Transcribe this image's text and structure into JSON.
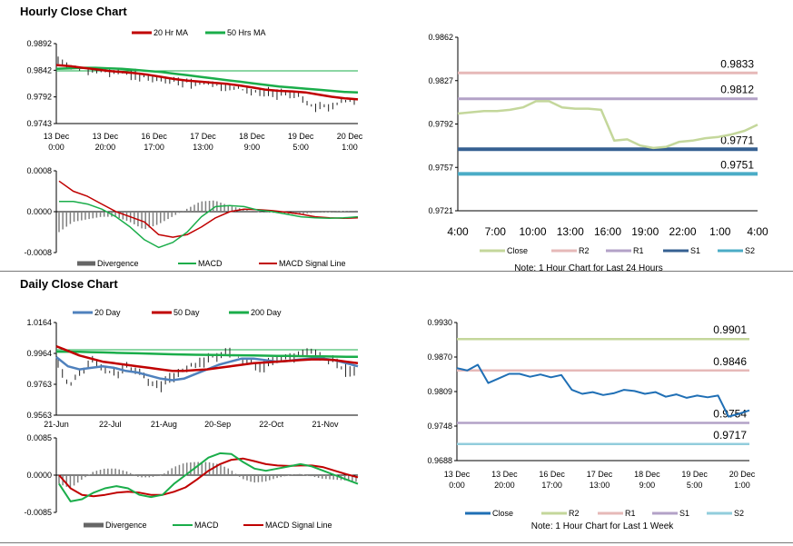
{
  "hourly_title": "Hourly Close Chart",
  "daily_title": "Daily Close Chart",
  "colors": {
    "red": "#c00000",
    "green": "#1aad4a",
    "blue": "#4f81bd",
    "black": "#000000",
    "pivot_close": "#c4d79b",
    "pivot_r2": "#e6b9b8",
    "pivot_r1": "#b3a2c7",
    "pivot_s1": "#366092",
    "pivot_s2": "#4bacc6",
    "weekly_close": "#1f6fb5",
    "weekly_r2": "#c4d79b",
    "weekly_r1": "#e6b9b8",
    "weekly_s1": "#b3a2c7",
    "weekly_s2": "#92cddc"
  },
  "chart_data": [
    {
      "id": "hourly-price",
      "type": "line",
      "title": "Hourly Close Chart",
      "yticks": [
        "0.9892",
        "0.9842",
        "0.9792",
        "0.9743"
      ],
      "ylim": [
        0.9743,
        0.9892
      ],
      "xticks": [
        [
          "13 Dec",
          "0:00"
        ],
        [
          "13 Dec",
          "20:00"
        ],
        [
          "16 Dec",
          "17:00"
        ],
        [
          "17 Dec",
          "13:00"
        ],
        [
          "18 Dec",
          "9:00"
        ],
        [
          "19 Dec",
          "5:00"
        ],
        [
          "20 Dec",
          "1:00"
        ]
      ],
      "legend": [
        "20 Hr MA",
        "50 Hrs MA"
      ],
      "series": [
        {
          "name": "Close",
          "values": [
            0.9855,
            0.9851,
            0.9846,
            0.9842,
            0.984,
            0.9838,
            0.9834,
            0.9829,
            0.9824,
            0.9822,
            0.982,
            0.9818,
            0.9815,
            0.9812,
            0.9808,
            0.9803,
            0.9799,
            0.98,
            0.9798,
            0.979,
            0.9772,
            0.9776,
            0.9782,
            0.9788
          ]
        },
        {
          "name": "20 Hr MA",
          "values": [
            0.9852,
            0.985,
            0.9847,
            0.9844,
            0.9841,
            0.9839,
            0.9837,
            0.9834,
            0.983,
            0.9826,
            0.9823,
            0.9821,
            0.9819,
            0.9817,
            0.9814,
            0.981,
            0.9806,
            0.9804,
            0.9803,
            0.9801,
            0.9797,
            0.9793,
            0.979,
            0.9788
          ]
        },
        {
          "name": "50 Hrs MA",
          "values": [
            0.9845,
            0.9846,
            0.9847,
            0.9847,
            0.9846,
            0.9845,
            0.9843,
            0.9841,
            0.9839,
            0.9836,
            0.9833,
            0.983,
            0.9827,
            0.9824,
            0.9821,
            0.9818,
            0.9815,
            0.9812,
            0.981,
            0.9808,
            0.9806,
            0.9804,
            0.9802,
            0.9801
          ]
        }
      ]
    },
    {
      "id": "hourly-macd",
      "type": "line",
      "yticks": [
        "0.0008",
        "0.0000",
        "-0.0008"
      ],
      "ylim": [
        -0.0008,
        0.0008
      ],
      "legend": [
        "Divergence",
        "MACD",
        "MACD Signal Line"
      ],
      "series": [
        {
          "name": "MACD",
          "values": [
            0.0002,
            0.0002,
            0.00015,
            5e-05,
            -0.0001,
            -0.0003,
            -0.00055,
            -0.0007,
            -0.0006,
            -0.0004,
            -0.0001,
            0.0001,
            0.00012,
            0.0001,
            3e-05,
            0.0,
            -5e-05,
            -0.0001,
            -0.00012,
            -0.00013,
            -0.00012,
            -0.0001
          ]
        },
        {
          "name": "MACD Signal Line",
          "values": [
            0.0006,
            0.0004,
            0.0003,
            0.00015,
            0.0,
            -0.0001,
            -0.0002,
            -0.00045,
            -0.0005,
            -0.00045,
            -0.0003,
            -0.00012,
            0.0,
            5e-05,
            4e-05,
            2e-05,
            -1e-05,
            -5e-05,
            -0.0001,
            -0.00012,
            -0.00013,
            -0.00012
          ]
        },
        {
          "name": "Divergence",
          "values": [
            -0.0004,
            -0.0002,
            -0.00015,
            -0.0001,
            -0.0001,
            -0.0002,
            -0.00035,
            -0.00025,
            -0.0001,
            5e-05,
            0.0002,
            0.00022,
            0.00012,
            5e-05,
            -1e-05,
            -2e-05,
            -4e-05,
            -5e-05,
            -2e-05,
            -1e-05,
            1e-05,
            2e-05
          ]
        }
      ]
    },
    {
      "id": "pivot-24h",
      "type": "line",
      "yticks": [
        "0.9862",
        "0.9827",
        "0.9792",
        "0.9757",
        "0.9721"
      ],
      "ylim": [
        0.9721,
        0.9862
      ],
      "xticks": [
        "4:00",
        "7:00",
        "10:00",
        "13:00",
        "16:00",
        "19:00",
        "22:00",
        "1:00",
        "4:00"
      ],
      "levels": [
        {
          "name": "R2",
          "value": 0.9833,
          "label": "0.9833"
        },
        {
          "name": "R1",
          "value": 0.9812,
          "label": "0.9812"
        },
        {
          "name": "S1",
          "value": 0.9771,
          "label": "0.9771"
        },
        {
          "name": "S2",
          "value": 0.9751,
          "label": "0.9751"
        }
      ],
      "close": [
        0.98,
        0.9801,
        0.9802,
        0.9802,
        0.9803,
        0.9805,
        0.981,
        0.981,
        0.9805,
        0.9804,
        0.9804,
        0.9803,
        0.9778,
        0.9779,
        0.9774,
        0.9772,
        0.9773,
        0.9777,
        0.9778,
        0.978,
        0.9781,
        0.9783,
        0.9786,
        0.9791
      ],
      "legend": [
        "Close",
        "R2",
        "R1",
        "S1",
        "S2"
      ],
      "note": "Note: 1 Hour Chart for Last 24 Hours"
    },
    {
      "id": "daily-price",
      "type": "line",
      "title": "Daily Close Chart",
      "yticks": [
        "1.0164",
        "0.9964",
        "0.9763",
        "0.9563"
      ],
      "ylim": [
        0.9563,
        1.0164
      ],
      "xticks": [
        "21-Jun",
        "22-Jul",
        "21-Aug",
        "20-Sep",
        "22-Oct",
        "21-Nov"
      ],
      "legend": [
        "20 Day",
        "50 Day",
        "200 Day"
      ],
      "series": [
        {
          "name": "Close",
          "values": [
            0.988,
            0.976,
            0.984,
            0.992,
            0.986,
            0.982,
            0.988,
            0.984,
            0.978,
            0.975,
            0.98,
            0.986,
            0.989,
            0.992,
            0.995,
            0.997,
            0.993,
            0.99,
            0.988,
            0.992,
            0.994,
            0.996,
            0.997,
            0.994,
            0.992,
            0.986,
            0.983
          ]
        },
        {
          "name": "20 Day",
          "values": [
            0.994,
            0.988,
            0.986,
            0.987,
            0.988,
            0.987,
            0.985,
            0.984,
            0.982,
            0.98,
            0.979,
            0.98,
            0.983,
            0.986,
            0.989,
            0.991,
            0.993,
            0.993,
            0.992,
            0.991,
            0.9915,
            0.9925,
            0.993,
            0.993,
            0.992,
            0.99,
            0.988
          ]
        },
        {
          "name": "50 Day",
          "values": [
            1.001,
            0.998,
            0.995,
            0.993,
            0.991,
            0.99,
            0.989,
            0.988,
            0.987,
            0.986,
            0.985,
            0.985,
            0.9855,
            0.986,
            0.987,
            0.988,
            0.989,
            0.99,
            0.9905,
            0.991,
            0.9915,
            0.992,
            0.9925,
            0.9925,
            0.992,
            0.991,
            0.99
          ]
        },
        {
          "name": "200 Day",
          "values": [
            0.9975,
            0.9975,
            0.9974,
            0.9972,
            0.997,
            0.9968,
            0.9966,
            0.9964,
            0.9962,
            0.996,
            0.9958,
            0.9956,
            0.9955,
            0.9954,
            0.9953,
            0.9952,
            0.9951,
            0.995,
            0.9949,
            0.9948,
            0.9947,
            0.9946,
            0.9945,
            0.9944,
            0.9943,
            0.9942,
            0.9941
          ]
        }
      ]
    },
    {
      "id": "daily-macd",
      "type": "line",
      "yticks": [
        "0.0085",
        "0.0000",
        "-0.0085"
      ],
      "ylim": [
        -0.0085,
        0.0085
      ],
      "legend": [
        "Divergence",
        "MACD",
        "MACD Signal Line"
      ],
      "series": [
        {
          "name": "MACD",
          "values": [
            -0.002,
            -0.006,
            -0.0055,
            -0.004,
            -0.003,
            -0.0025,
            -0.003,
            -0.0045,
            -0.005,
            -0.0045,
            -0.002,
            0.0,
            0.002,
            0.004,
            0.005,
            0.0048,
            0.003,
            0.0015,
            0.001,
            0.0015,
            0.002,
            0.0025,
            0.002,
            0.001,
            0.0,
            -0.001,
            -0.002
          ]
        },
        {
          "name": "MACD Signal Line",
          "values": [
            0.0,
            -0.003,
            -0.0045,
            -0.0048,
            -0.0045,
            -0.004,
            -0.0038,
            -0.004,
            -0.0045,
            -0.0045,
            -0.0038,
            -0.0028,
            -0.001,
            0.001,
            0.0025,
            0.0035,
            0.0038,
            0.0032,
            0.0025,
            0.0022,
            0.0021,
            0.0022,
            0.0022,
            0.0018,
            0.001,
            0.0002,
            -0.0005
          ]
        },
        {
          "name": "Divergence",
          "values": [
            -0.002,
            -0.003,
            -0.001,
            0.0008,
            0.0015,
            0.0015,
            0.0008,
            -0.0005,
            -0.0005,
            0.0,
            0.0018,
            0.0028,
            0.003,
            0.003,
            0.0025,
            0.0013,
            -0.0008,
            -0.0017,
            -0.0015,
            -0.0007,
            -0.0001,
            0.0003,
            -0.0002,
            -0.0008,
            -0.001,
            -0.0012,
            -0.0015
          ]
        }
      ]
    },
    {
      "id": "pivot-week",
      "type": "line",
      "yticks": [
        "0.9930",
        "0.9870",
        "0.9809",
        "0.9748",
        "0.9688"
      ],
      "ylim": [
        0.9688,
        0.993
      ],
      "xticks": [
        [
          "13 Dec",
          "0:00"
        ],
        [
          "13 Dec",
          "20:00"
        ],
        [
          "16 Dec",
          "17:00"
        ],
        [
          "17 Dec",
          "13:00"
        ],
        [
          "18 Dec",
          "9:00"
        ],
        [
          "19 Dec",
          "5:00"
        ],
        [
          "20 Dec",
          "1:00"
        ]
      ],
      "levels": [
        {
          "name": "R2",
          "value": 0.9901,
          "label": "0.9901"
        },
        {
          "name": "R1",
          "value": 0.9846,
          "label": "0.9846"
        },
        {
          "name": "S1",
          "value": 0.9754,
          "label": "0.9754"
        },
        {
          "name": "S2",
          "value": 0.9717,
          "label": "0.9717"
        }
      ],
      "close": [
        0.985,
        0.9846,
        0.9856,
        0.9824,
        0.9832,
        0.984,
        0.984,
        0.9835,
        0.9839,
        0.9834,
        0.9838,
        0.9812,
        0.9805,
        0.9808,
        0.9803,
        0.9806,
        0.9812,
        0.981,
        0.9805,
        0.9808,
        0.98,
        0.9804,
        0.9798,
        0.9802,
        0.9799,
        0.9802,
        0.9765,
        0.977,
        0.9776
      ],
      "legend": [
        "Close",
        "R2",
        "R1",
        "S1",
        "S2"
      ],
      "note": "Note: 1 Hour Chart for Last 1 Week"
    }
  ]
}
